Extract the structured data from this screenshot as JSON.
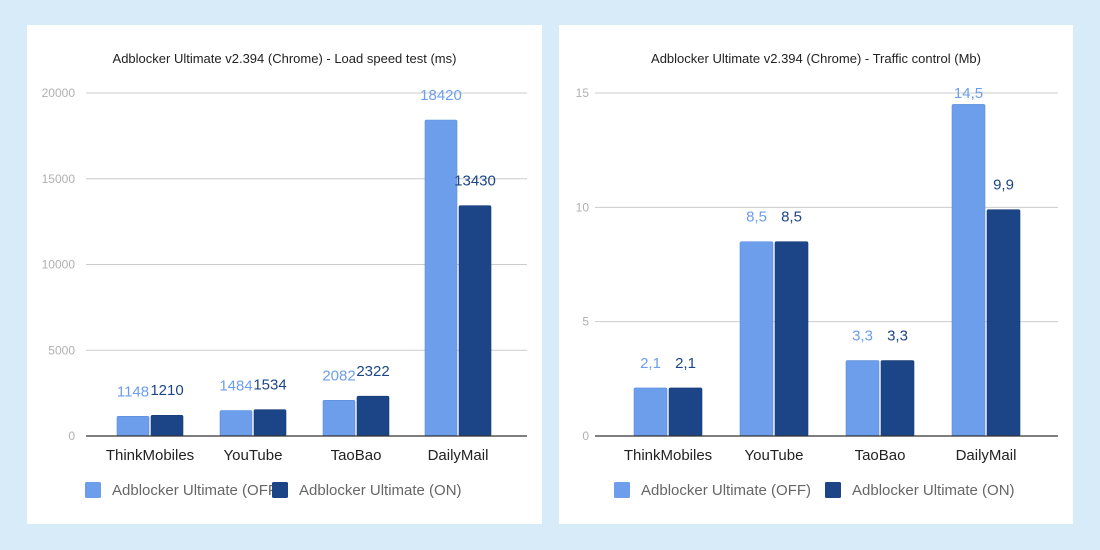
{
  "colors": {
    "off": "#6d9eeb",
    "on": "#1c4587",
    "grid": "#cccccc",
    "axis": "#333333",
    "tick": "#b0b0b0"
  },
  "chart_data": [
    {
      "type": "bar",
      "title": "Adblocker Ultimate v2.394 (Chrome) - Load speed test (ms)",
      "categories": [
        "ThinkMobiles",
        "YouTube",
        "TaoBao",
        "DailyMail"
      ],
      "ylim": [
        0,
        20000
      ],
      "yticks": [
        0,
        5000,
        10000,
        15000,
        20000
      ],
      "ytick_labels": [
        "0",
        "5000",
        "10000",
        "15000",
        "20000"
      ],
      "grid": true,
      "legend": "bottom",
      "series": [
        {
          "name": "Adblocker Ultimate (OFF)",
          "values": [
            1148,
            1484,
            2082,
            18420
          ],
          "labels": [
            "1148",
            "1484",
            "2082",
            "18420"
          ]
        },
        {
          "name": "Adblocker Ultimate (ON)",
          "values": [
            1210,
            1534,
            2322,
            13430
          ],
          "labels": [
            "1210",
            "1534",
            "2322",
            "13430"
          ]
        }
      ]
    },
    {
      "type": "bar",
      "title": "Adblocker Ultimate v2.394 (Chrome) - Traffic control (Mb)",
      "categories": [
        "ThinkMobiles",
        "YouTube",
        "TaoBao",
        "DailyMail"
      ],
      "ylim": [
        0,
        15
      ],
      "yticks": [
        0,
        5,
        10,
        15
      ],
      "ytick_labels": [
        "0",
        "5",
        "10",
        "15"
      ],
      "grid": true,
      "legend": "bottom",
      "series": [
        {
          "name": "Adblocker Ultimate (OFF)",
          "values": [
            2.1,
            8.5,
            3.3,
            14.5
          ],
          "labels": [
            "2,1",
            "8,5",
            "3,3",
            "14,5"
          ]
        },
        {
          "name": "Adblocker Ultimate (ON)",
          "values": [
            2.1,
            8.5,
            3.3,
            9.9
          ],
          "labels": [
            "2,1",
            "8,5",
            "3,3",
            "9,9"
          ]
        }
      ]
    }
  ]
}
